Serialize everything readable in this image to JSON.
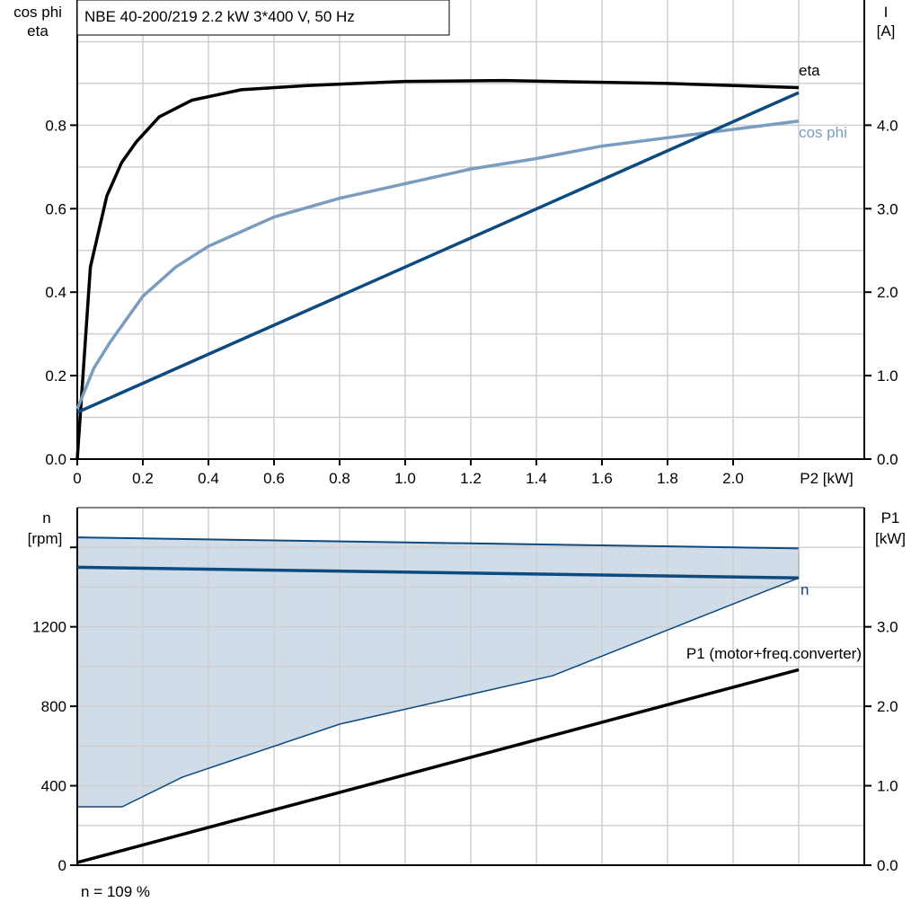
{
  "chart_data": [
    {
      "type": "line",
      "title": "NBE 40-200/219   2.2 kW   3*400 V, 50 Hz",
      "xlabel": "P2 [kW]",
      "ylabel_left": [
        "cos phi",
        "eta"
      ],
      "ylabel_right": [
        "I",
        "[A]"
      ],
      "xlim": [
        0,
        2.4
      ],
      "ylim_left": [
        0,
        1.1
      ],
      "ylim_right": [
        0,
        5.5
      ],
      "x_ticks": [
        "0",
        "0.2",
        "0.4",
        "0.6",
        "0.8",
        "1.0",
        "1.2",
        "1.4",
        "1.6",
        "1.8",
        "2.0"
      ],
      "y_ticks_left": [
        "0.0",
        "0.2",
        "0.4",
        "0.6",
        "0.8"
      ],
      "y_ticks_right": [
        "0.0",
        "1.0",
        "2.0",
        "3.0",
        "4.0"
      ],
      "grid": true,
      "series": [
        {
          "name": "eta",
          "axis": "left",
          "color": "#000000",
          "x": [
            0,
            0.04,
            0.09,
            0.135,
            0.18,
            0.25,
            0.35,
            0.5,
            0.7,
            1.0,
            1.3,
            1.8,
            2.2
          ],
          "y": [
            0,
            0.46,
            0.63,
            0.71,
            0.76,
            0.82,
            0.86,
            0.885,
            0.895,
            0.905,
            0.907,
            0.9,
            0.89
          ]
        },
        {
          "name": "cos phi",
          "axis": "left",
          "color": "#7a9cbf",
          "x": [
            0,
            0.05,
            0.1,
            0.15,
            0.2,
            0.3,
            0.4,
            0.6,
            0.8,
            1.0,
            1.2,
            1.4,
            1.6,
            1.8,
            2.0,
            2.2
          ],
          "y": [
            0.12,
            0.217,
            0.28,
            0.335,
            0.39,
            0.46,
            0.51,
            0.58,
            0.625,
            0.66,
            0.695,
            0.72,
            0.75,
            0.77,
            0.79,
            0.81
          ]
        },
        {
          "name": "I",
          "axis": "right",
          "color": "#0d4a80",
          "x": [
            0,
            2.2
          ],
          "y": [
            0.56,
            4.39
          ]
        }
      ]
    },
    {
      "type": "area",
      "ylabel_left": [
        "n",
        "[rpm]"
      ],
      "ylabel_right": [
        "P1",
        "[kW]"
      ],
      "xlim": [
        0,
        2.4
      ],
      "ylim_left": [
        0,
        1800
      ],
      "ylim_right": [
        0,
        4.5
      ],
      "y_ticks_left": [
        "0",
        "400",
        "800",
        "1200"
      ],
      "y_ticks_right": [
        "0.0",
        "1.0",
        "2.0",
        "3.0"
      ],
      "grid": true,
      "band": {
        "color": "#d0dce8",
        "upper": {
          "x": [
            0,
            2.2
          ],
          "y": [
            1650,
            1595
          ]
        },
        "lower": {
          "x": [
            0,
            0.137,
            0.32,
            0.8,
            1.45,
            2.2
          ],
          "y": [
            294,
            294,
            443,
            710,
            954,
            1446
          ]
        }
      },
      "series": [
        {
          "name": "n",
          "axis": "left",
          "color": "#0d4a80",
          "x": [
            0,
            2.2
          ],
          "y": [
            1500,
            1446
          ]
        },
        {
          "name": "P1 (motor+freq.converter)",
          "axis": "right",
          "color": "#000000",
          "x": [
            0,
            2.2
          ],
          "y": [
            0.034,
            2.46
          ]
        }
      ],
      "footnote": "n = 109 %"
    }
  ]
}
